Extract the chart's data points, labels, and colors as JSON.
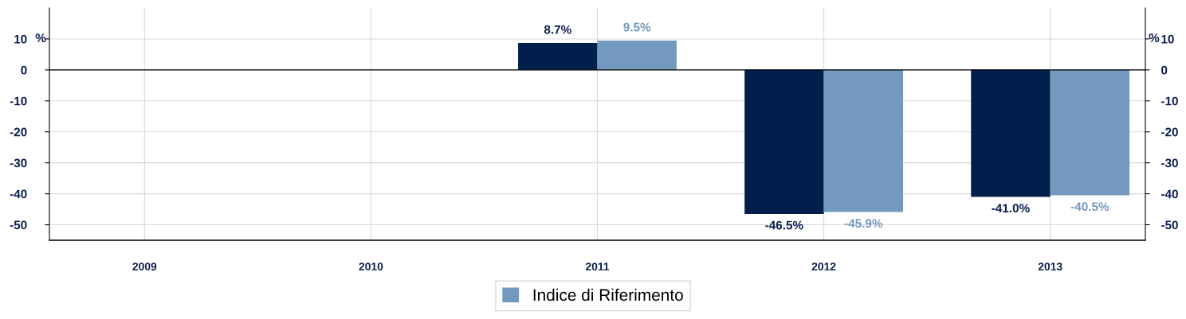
{
  "chart_data": {
    "type": "bar",
    "categories": [
      "2009",
      "2010",
      "2011",
      "2012",
      "2013"
    ],
    "series": [
      {
        "color": "#001f4d",
        "values": [
          null,
          null,
          8.7,
          -46.5,
          -41.0
        ],
        "value_labels": [
          null,
          null,
          "8.7%",
          "-46.5%",
          "-41.0%"
        ]
      },
      {
        "name": "Indice di Riferimento",
        "color": "#7399bf",
        "values": [
          null,
          null,
          9.5,
          -45.9,
          -40.5
        ],
        "value_labels": [
          null,
          null,
          "9.5%",
          "-45.9%",
          "-40.5%"
        ]
      }
    ],
    "ylabel": "%",
    "y2label": "%",
    "ylim": [
      -55,
      20
    ],
    "yticks": [
      -50,
      -40,
      -30,
      -20,
      -10,
      0,
      10
    ],
    "y2lim": [
      -55,
      20
    ],
    "y2ticks": [
      -50,
      -40,
      -30,
      -20,
      -10,
      0,
      10
    ],
    "ref_lines": [
      {
        "axis": "y",
        "value": 0,
        "color": "#000000"
      }
    ],
    "grid": true,
    "legend": "bottom"
  }
}
